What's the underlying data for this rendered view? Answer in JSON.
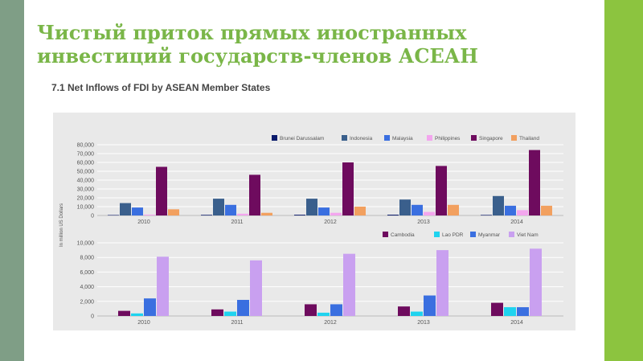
{
  "slide": {
    "title": "Чистый приток прямых иностранных инвестиций государств-членов АСЕАН",
    "accent_color": "#7ab648",
    "left_bar_color": "#7f9e86",
    "right_bar_color": "#8cc43f"
  },
  "chart_heading": "7.1 Net Inflows of FDI by ASEAN Member States",
  "chart_data": [
    {
      "type": "bar",
      "title": "7.1 Net Inflows of FDI by ASEAN Member States",
      "categories": [
        "2010",
        "2011",
        "2012",
        "2013",
        "2014"
      ],
      "ylabel": "In million US Dollars",
      "ylim": [
        0,
        80000
      ],
      "yticks": [
        "0",
        "10,000",
        "20,000",
        "30,000",
        "40,000",
        "50,000",
        "60,000",
        "70,000",
        "80,000"
      ],
      "legend_position": "top-right",
      "series": [
        {
          "name": "Brunei Darussalam",
          "color": "#0a1a6b",
          "values": [
            500,
            700,
            850,
            900,
            600
          ]
        },
        {
          "name": "Indonesia",
          "color": "#3a5f8c",
          "values": [
            14000,
            19000,
            19000,
            18000,
            22000
          ]
        },
        {
          "name": "Malaysia",
          "color": "#3a6fe0",
          "values": [
            9000,
            12000,
            9000,
            12000,
            11000
          ]
        },
        {
          "name": "Philippines",
          "color": "#f3a6ee",
          "values": [
            1000,
            2000,
            3000,
            4000,
            6000
          ]
        },
        {
          "name": "Singapore",
          "color": "#6e0b5e",
          "values": [
            55000,
            46000,
            60000,
            56000,
            74000
          ]
        },
        {
          "name": "Thailand",
          "color": "#f2a05f",
          "values": [
            7000,
            3000,
            10000,
            12000,
            11000
          ]
        }
      ]
    },
    {
      "type": "bar",
      "categories": [
        "2010",
        "2011",
        "2012",
        "2013",
        "2014"
      ],
      "ylim": [
        0,
        10000
      ],
      "yticks": [
        "0",
        "2,000",
        "4,000",
        "6,000",
        "8,000",
        "10,000"
      ],
      "legend_position": "top-right",
      "series": [
        {
          "name": "Cambodia",
          "color": "#6e0b5e",
          "values": [
            700,
            900,
            1600,
            1300,
            1800
          ]
        },
        {
          "name": "Lao PDR",
          "color": "#1fd3ef",
          "values": [
            350,
            600,
            450,
            600,
            1200
          ]
        },
        {
          "name": "Myanmar",
          "color": "#3a6fe0",
          "values": [
            2400,
            2200,
            1600,
            2800,
            1200
          ]
        },
        {
          "name": "Viet Nam",
          "color": "#c9a0f0",
          "values": [
            8100,
            7600,
            8500,
            9000,
            9200
          ]
        }
      ]
    }
  ]
}
